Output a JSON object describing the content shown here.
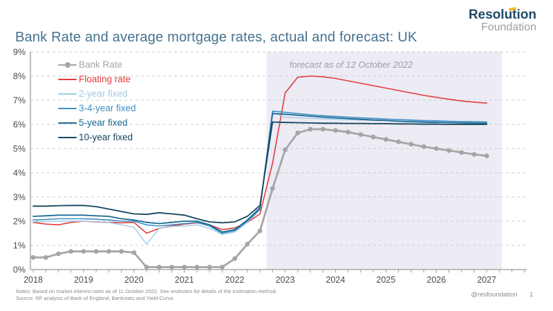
{
  "header": {
    "title": "Bank Rate and average mortgage rates, actual and forecast: UK",
    "logo_line1": "Resolution",
    "logo_line2": "Foundation",
    "logo_color": "#1e4b66",
    "logo_accent_color": "#f2b72c"
  },
  "chart_data": {
    "type": "line",
    "title": "Bank Rate and average mortgage rates, actual and forecast: UK",
    "xlabel": "",
    "ylabel": "",
    "ylim": [
      0,
      9
    ],
    "y_tick_step": 1,
    "y_tick_suffix": "%",
    "grid": "dashed-horizontal",
    "legend_position": "top-left-inside",
    "x_ticks": [
      2018,
      2019,
      2020,
      2021,
      2022,
      2023,
      2024,
      2025,
      2026,
      2027
    ],
    "forecast_band": {
      "start": 2022.63,
      "end": 2027.3,
      "label": "forecast as of 12 October 2022",
      "color": "#edebf4"
    },
    "x": [
      2018.0,
      2018.25,
      2018.5,
      2018.75,
      2019.0,
      2019.25,
      2019.5,
      2019.75,
      2020.0,
      2020.25,
      2020.5,
      2020.75,
      2021.0,
      2021.25,
      2021.5,
      2021.75,
      2022.0,
      2022.25,
      2022.5,
      2022.75,
      2023.0,
      2023.25,
      2023.5,
      2023.75,
      2024.0,
      2024.25,
      2024.5,
      2024.75,
      2025.0,
      2025.25,
      2025.5,
      2025.75,
      2026.0,
      2026.25,
      2026.5,
      2026.75,
      2027.0
    ],
    "series": [
      {
        "name": "Bank Rate",
        "color": "#a5a5a5",
        "width": 2.8,
        "marker": true,
        "values": [
          0.5,
          0.5,
          0.65,
          0.75,
          0.75,
          0.75,
          0.75,
          0.75,
          0.7,
          0.1,
          0.1,
          0.1,
          0.1,
          0.1,
          0.1,
          0.1,
          0.45,
          1.05,
          1.6,
          3.35,
          4.95,
          5.65,
          5.8,
          5.8,
          5.75,
          5.68,
          5.58,
          5.48,
          5.38,
          5.28,
          5.18,
          5.08,
          5.0,
          4.92,
          4.84,
          4.76,
          4.7
        ]
      },
      {
        "name": "Floating rate",
        "color": "#e23b3b",
        "width": 1.6,
        "marker": false,
        "values": [
          1.95,
          1.88,
          1.85,
          1.95,
          2.0,
          1.97,
          1.95,
          1.93,
          1.95,
          1.5,
          1.7,
          1.8,
          1.88,
          1.93,
          1.85,
          1.65,
          1.72,
          1.95,
          2.3,
          4.4,
          7.3,
          7.95,
          8.0,
          7.97,
          7.9,
          7.8,
          7.7,
          7.6,
          7.5,
          7.4,
          7.3,
          7.2,
          7.12,
          7.04,
          6.97,
          6.92,
          6.88
        ]
      },
      {
        "name": "2-year fixed",
        "color": "#9fcbe6",
        "width": 1.4,
        "marker": false,
        "values": [
          1.97,
          1.98,
          2.0,
          2.0,
          2.0,
          1.98,
          1.95,
          1.85,
          1.75,
          1.05,
          1.7,
          1.78,
          1.8,
          1.85,
          1.7,
          1.45,
          1.55,
          1.95,
          2.45,
          6.5,
          6.3,
          6.27,
          6.25,
          6.23,
          6.21,
          6.19,
          6.18,
          6.17,
          6.16,
          6.15,
          6.14,
          6.13,
          6.13,
          6.12,
          6.11,
          6.1,
          6.1
        ]
      },
      {
        "name": "3-4-year fixed",
        "color": "#3b8ec2",
        "width": 1.6,
        "marker": false,
        "values": [
          2.05,
          2.07,
          2.1,
          2.1,
          2.1,
          2.08,
          2.05,
          2.0,
          2.0,
          1.85,
          1.8,
          1.85,
          1.9,
          1.95,
          1.8,
          1.5,
          1.6,
          2.0,
          2.5,
          6.55,
          6.5,
          6.45,
          6.4,
          6.36,
          6.33,
          6.3,
          6.27,
          6.25,
          6.22,
          6.2,
          6.18,
          6.16,
          6.15,
          6.13,
          6.12,
          6.11,
          6.1
        ]
      },
      {
        "name": "5-year fixed",
        "color": "#1c6a96",
        "width": 1.8,
        "marker": false,
        "values": [
          2.2,
          2.22,
          2.25,
          2.25,
          2.25,
          2.22,
          2.2,
          2.1,
          2.05,
          1.95,
          1.9,
          1.95,
          2.0,
          2.0,
          1.85,
          1.55,
          1.65,
          2.05,
          2.55,
          6.45,
          6.42,
          6.38,
          6.34,
          6.3,
          6.27,
          6.24,
          6.21,
          6.18,
          6.16,
          6.13,
          6.11,
          6.09,
          6.08,
          6.07,
          6.06,
          6.05,
          6.05
        ]
      },
      {
        "name": "10-year fixed",
        "color": "#15425c",
        "width": 1.8,
        "marker": false,
        "values": [
          2.62,
          2.62,
          2.64,
          2.65,
          2.65,
          2.6,
          2.5,
          2.4,
          2.3,
          2.28,
          2.35,
          2.3,
          2.25,
          2.1,
          1.97,
          1.93,
          1.97,
          2.2,
          2.65,
          6.1,
          6.08,
          6.07,
          6.06,
          6.05,
          6.05,
          6.04,
          6.04,
          6.03,
          6.03,
          6.02,
          6.02,
          6.01,
          6.01,
          6.0,
          6.0,
          6.0,
          6.0
        ]
      }
    ],
    "axis_color": "#9b9b9b",
    "gridline_color": "#cccccc",
    "tick_label_color": "#4a4a4a"
  },
  "footer": {
    "notes": "Notes: Based on market interest rates as of 11 October 2022. See endnotes for details of the estimation method.",
    "source": "Source: RF analysis of Bank of England, Bankstats and Yield Curve.",
    "handle": "@resfoundation",
    "page": "1"
  }
}
